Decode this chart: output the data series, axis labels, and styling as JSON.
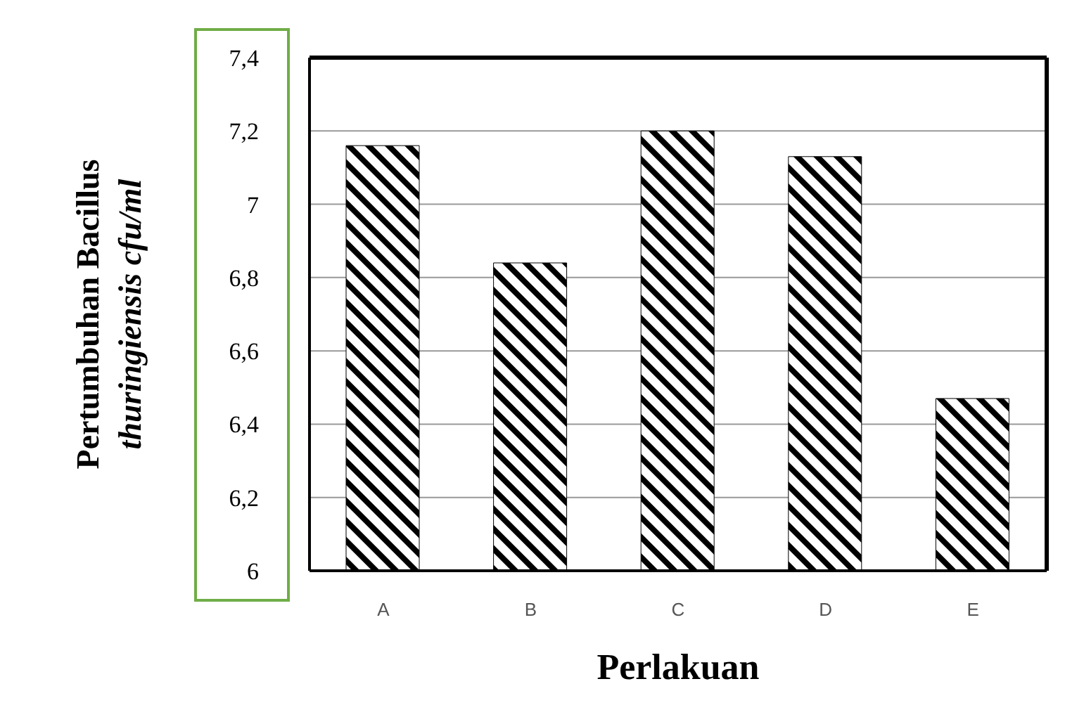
{
  "chart_data": {
    "type": "bar",
    "xlabel": "Perlakuan",
    "ylabel": "Pertumbuhan Bacillus thuringiensis cfu/ml",
    "categories": [
      "A",
      "B",
      "C",
      "D",
      "E"
    ],
    "values": [
      7.16,
      6.84,
      7.2,
      7.13,
      6.47
    ],
    "color": "#000000",
    "ylim": [
      6,
      7.4
    ],
    "yticks": [
      {
        "value": 6,
        "label": "6"
      },
      {
        "value": 6.2,
        "label": "6,2"
      },
      {
        "value": 6.4,
        "label": "6,4"
      },
      {
        "value": 6.6,
        "label": "6,6"
      },
      {
        "value": 6.8,
        "label": "6,8"
      },
      {
        "value": 7,
        "label": "7"
      },
      {
        "value": 7.2,
        "label": "7,2"
      },
      {
        "value": 7.4,
        "label": "7,4"
      }
    ],
    "grid": "y"
  }
}
